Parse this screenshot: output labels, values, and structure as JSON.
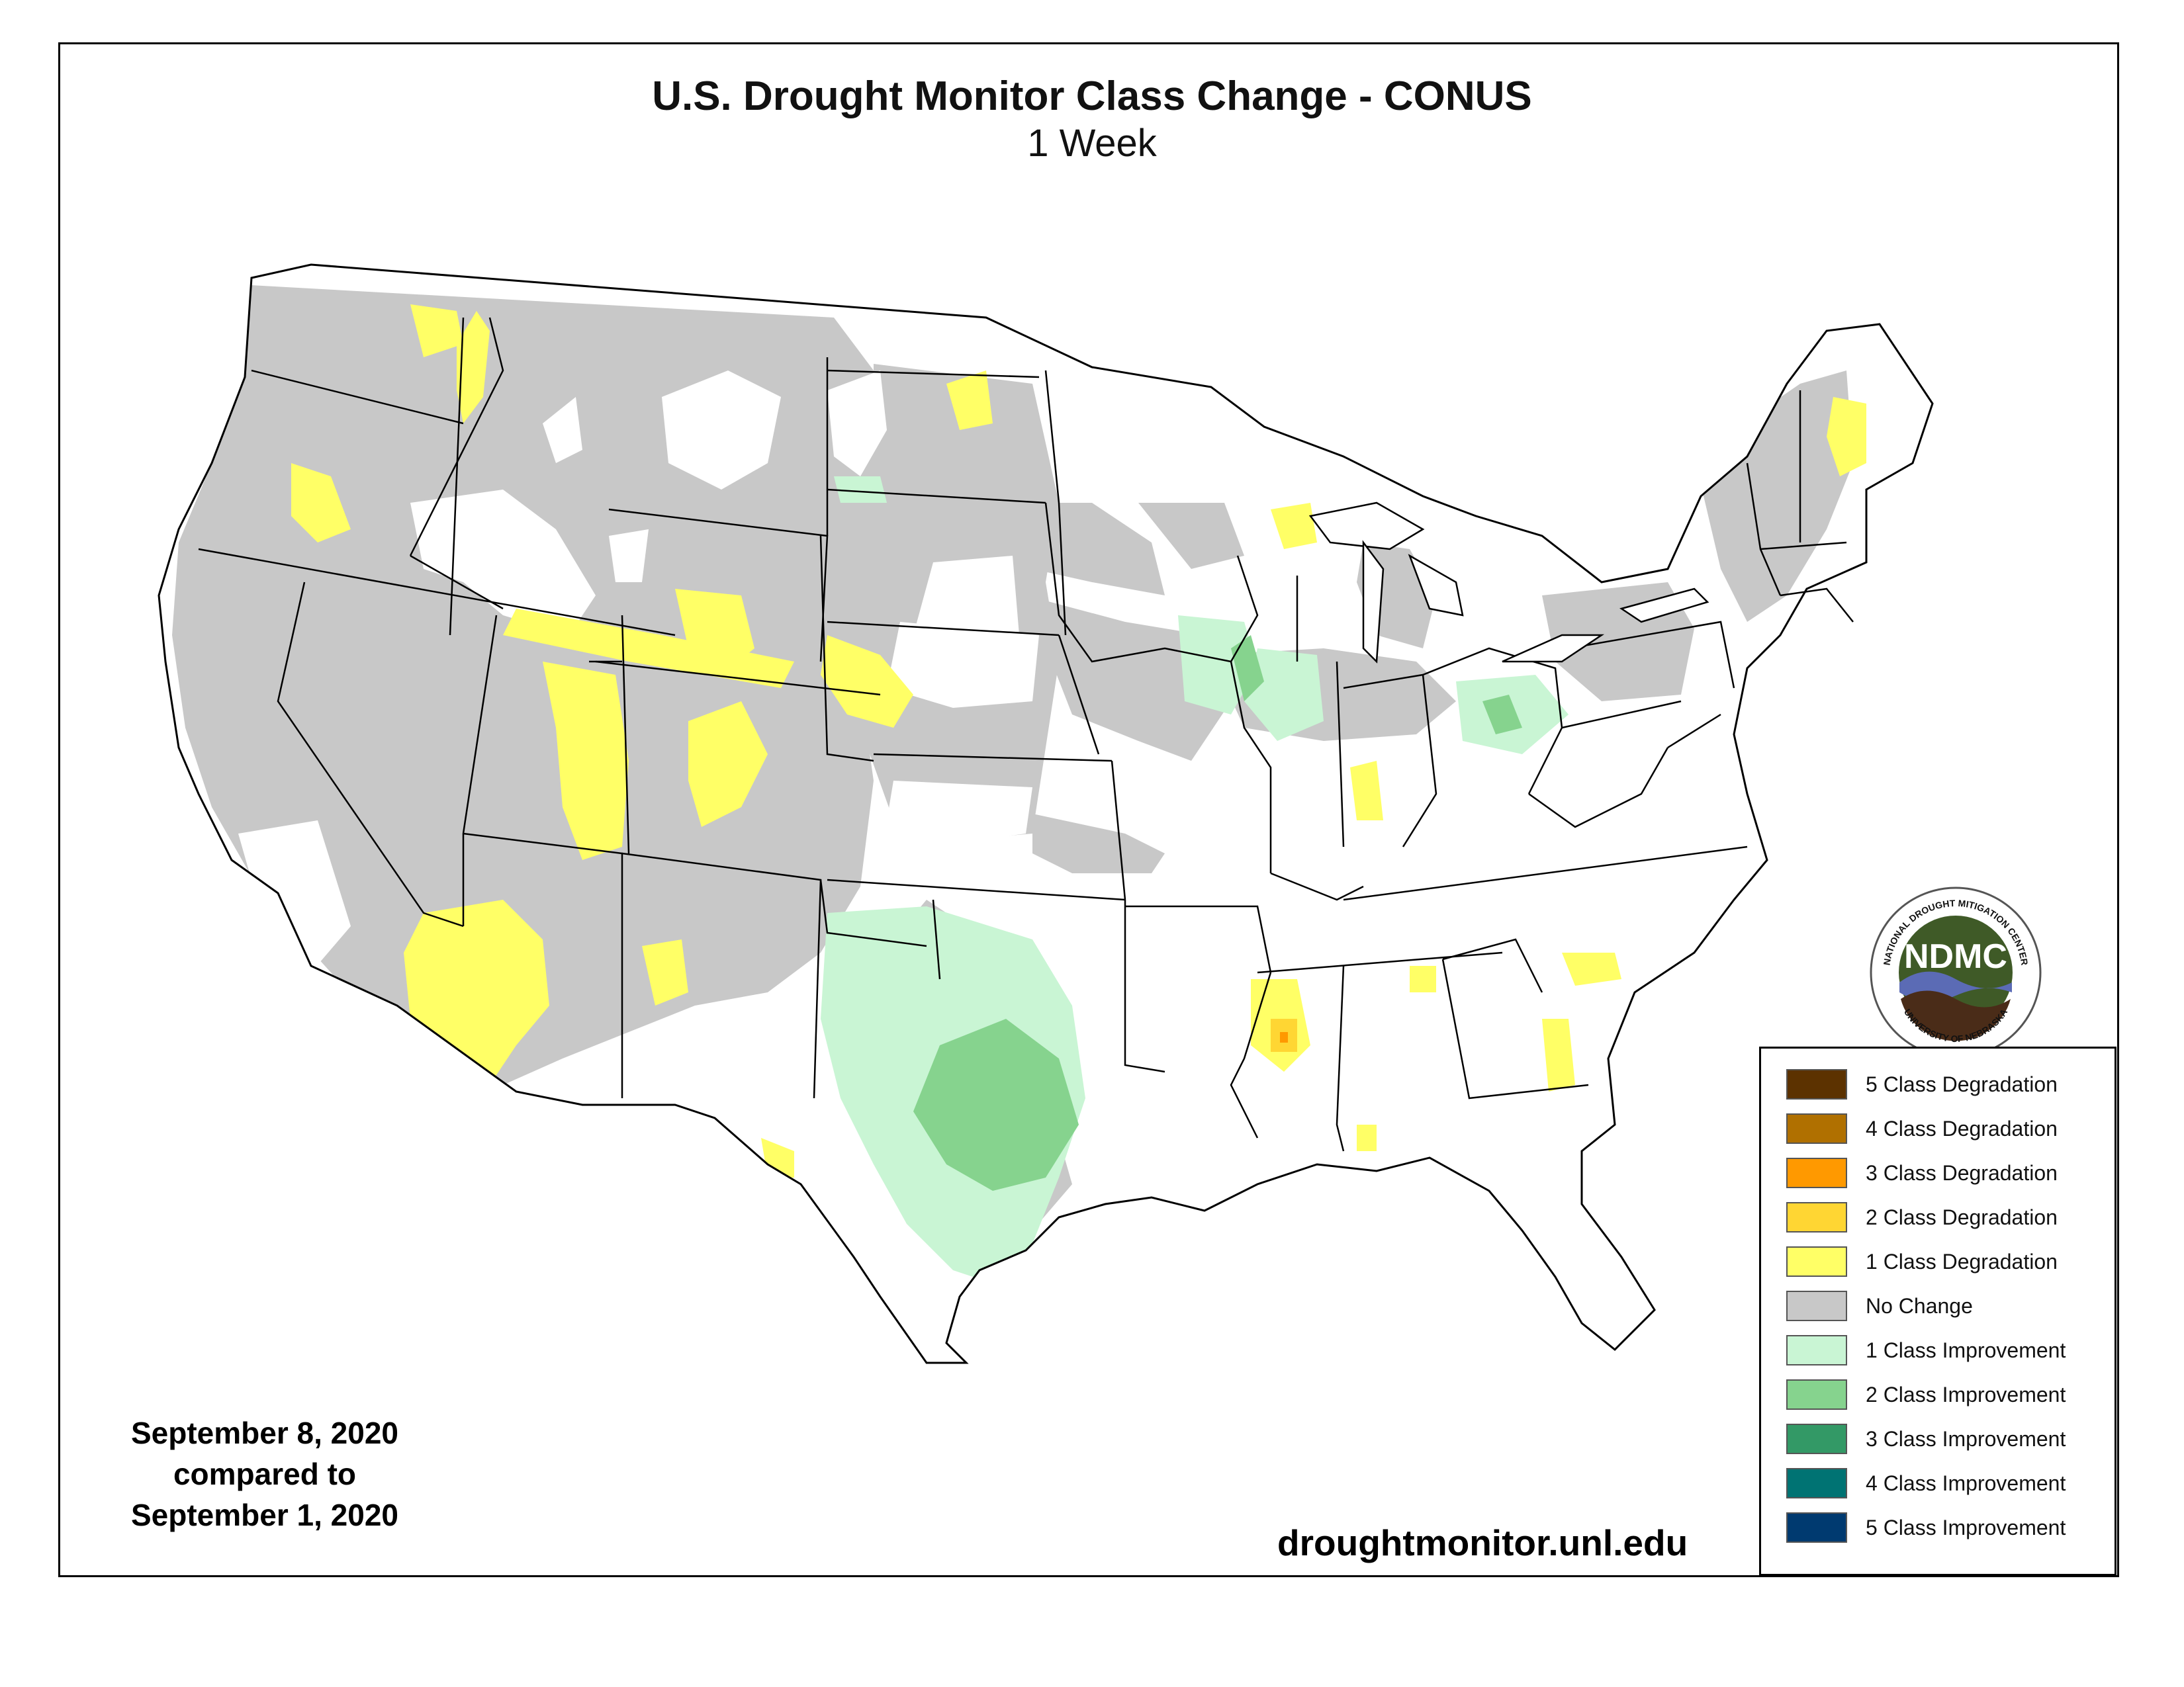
{
  "title": "U.S. Drought Monitor Class Change - CONUS",
  "subtitle": "1 Week",
  "dates": {
    "line1": "September 8, 2020",
    "line2": "compared to",
    "line3": "September 1, 2020"
  },
  "website": "droughtmonitor.unl.edu",
  "logo": {
    "abbr": "NDMC",
    "top_text": "NATIONAL DROUGHT MITIGATION CENTER",
    "bottom_text": "UNIVERSITY OF NEBRASKA"
  },
  "colors": {
    "no_change": "#c8c8c8",
    "improve1": "#c9f5d4",
    "improve2": "#86d38e",
    "degrade1": "#ffff66",
    "degrade2": "#ffd633",
    "degrade3": "#ff9900"
  },
  "legend": [
    {
      "label": "5 Class Degradation",
      "color": "#5c3200"
    },
    {
      "label": "4 Class Degradation",
      "color": "#b07000"
    },
    {
      "label": "3 Class Degradation",
      "color": "#ff9900"
    },
    {
      "label": "2 Class Degradation",
      "color": "#ffd633"
    },
    {
      "label": "1 Class Degradation",
      "color": "#ffff66"
    },
    {
      "label": "No Change",
      "color": "#c8c8c8"
    },
    {
      "label": "1 Class Improvement",
      "color": "#c9f5d4"
    },
    {
      "label": "2 Class Improvement",
      "color": "#86d38e"
    },
    {
      "label": "3 Class Improvement",
      "color": "#339966"
    },
    {
      "label": "4 Class Improvement",
      "color": "#007373"
    },
    {
      "label": "5 Class Improvement",
      "color": "#003a70"
    }
  ]
}
